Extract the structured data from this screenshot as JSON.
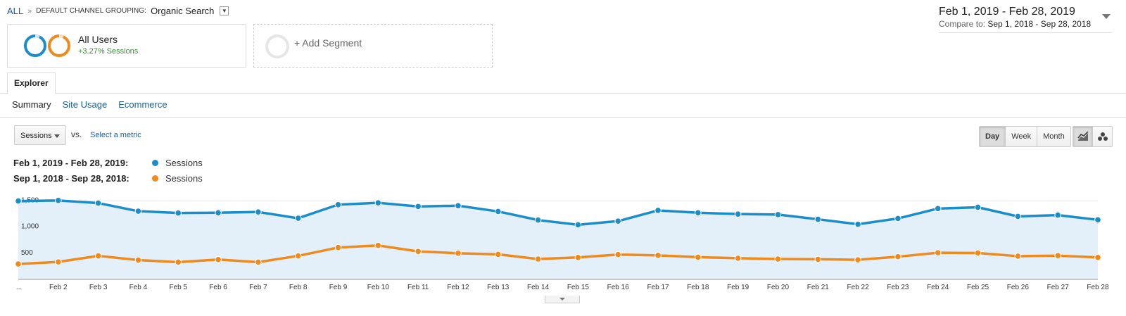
{
  "breadcrumb": {
    "root": "ALL",
    "separator": "»",
    "dimension": "DEFAULT CHANNEL GROUPING:",
    "value": "Organic Search"
  },
  "date_range": {
    "main": "Feb 1, 2019 - Feb 28, 2019",
    "compare_label": "Compare to:",
    "compare_range": "Sep 1, 2018 - Sep 28, 2018"
  },
  "segments": {
    "active": {
      "name": "All Users",
      "delta": "+3.27% Sessions"
    },
    "add_label": "+ Add Segment"
  },
  "tabs": {
    "explorer": "Explorer"
  },
  "subtabs": [
    {
      "label": "Summary",
      "active": true
    },
    {
      "label": "Site Usage",
      "active": false
    },
    {
      "label": "Ecommerce",
      "active": false
    }
  ],
  "metric": {
    "selected": "Sessions",
    "vs_label": "vs.",
    "select_metric": "Select a metric"
  },
  "granularity": {
    "day": "Day",
    "week": "Week",
    "month": "Month",
    "selected": "Day"
  },
  "chart_icons": {
    "line": "line-chart-icon",
    "motion": "motion-chart-icon"
  },
  "legend": [
    {
      "range": "Feb 1, 2019 - Feb 28, 2019:",
      "series": "Sessions",
      "color": "#1b8dc9"
    },
    {
      "range": "Sep 1, 2018 - Sep 28, 2018:",
      "series": "Sessions",
      "color": "#ee8a1e"
    }
  ],
  "colors": {
    "primary": "#1b8dc9",
    "compare": "#ee8a1e",
    "area": "#e3f0f9",
    "link": "#1a5d99",
    "positive": "#3a8d3a"
  },
  "chart_data": {
    "type": "line",
    "categories": [
      "...",
      "Feb 2",
      "Feb 3",
      "Feb 4",
      "Feb 5",
      "Feb 6",
      "Feb 7",
      "Feb 8",
      "Feb 9",
      "Feb 10",
      "Feb 11",
      "Feb 12",
      "Feb 13",
      "Feb 14",
      "Feb 15",
      "Feb 16",
      "Feb 17",
      "Feb 18",
      "Feb 19",
      "Feb 20",
      "Feb 21",
      "Feb 22",
      "Feb 23",
      "Feb 24",
      "Feb 25",
      "Feb 26",
      "Feb 27",
      "Feb 28"
    ],
    "series": [
      {
        "name": "Sessions",
        "period": "Feb 1, 2019 - Feb 28, 2019",
        "values": [
          1500,
          1510,
          1460,
          1305,
          1270,
          1275,
          1290,
          1170,
          1430,
          1465,
          1395,
          1410,
          1300,
          1135,
          1045,
          1115,
          1320,
          1275,
          1250,
          1240,
          1150,
          1055,
          1165,
          1355,
          1380,
          1205,
          1230,
          1140
        ]
      },
      {
        "name": "Sessions",
        "period": "Sep 1, 2018 - Sep 28, 2018",
        "values": [
          295,
          335,
          450,
          370,
          330,
          380,
          330,
          450,
          610,
          650,
          535,
          500,
          480,
          390,
          420,
          475,
          460,
          425,
          405,
          390,
          385,
          375,
          435,
          510,
          505,
          445,
          455,
          420
        ]
      }
    ],
    "yticks": [
      500,
      1000,
      1500
    ],
    "ylim": [
      0,
      1750
    ],
    "area_under": "primary",
    "grid": true
  }
}
